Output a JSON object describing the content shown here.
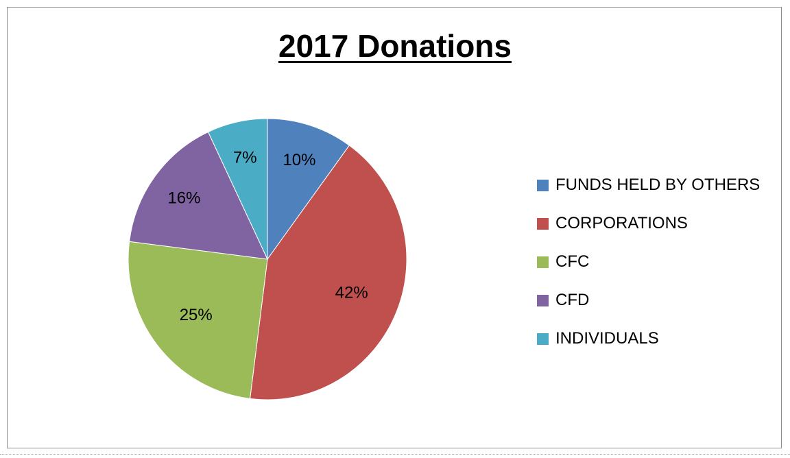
{
  "chart_data": {
    "type": "pie",
    "title": "2017 Donations",
    "slices": [
      {
        "label": "FUNDS HELD BY OTHERS",
        "value": 10,
        "display": "10%",
        "color": "#4f81bd"
      },
      {
        "label": "CORPORATIONS",
        "value": 42,
        "display": "42%",
        "color": "#c0504d"
      },
      {
        "label": "CFC",
        "value": 25,
        "display": "25%",
        "color": "#9bbb59"
      },
      {
        "label": "CFD",
        "value": 16,
        "display": "16%",
        "color": "#8064a2"
      },
      {
        "label": "INDIVIDUALS",
        "value": 7,
        "display": "7%",
        "color": "#4bacc6"
      }
    ],
    "legend_position": "right"
  }
}
